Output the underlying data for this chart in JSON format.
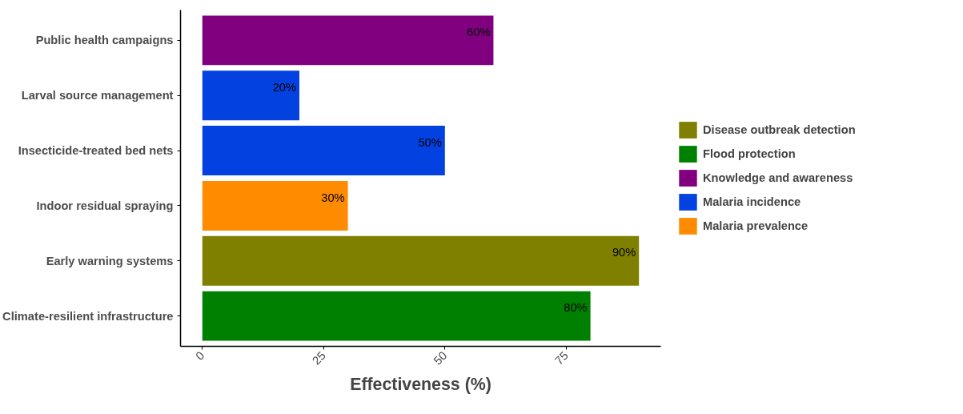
{
  "chart_data": {
    "type": "bar",
    "orientation": "horizontal",
    "xlabel": "Effectiveness (%)",
    "categories": [
      "Public health campaigns",
      "Larval source management",
      "Insecticide-treated bed nets",
      "Indoor residual spraying",
      "Early warning systems",
      "Climate-resilient infrastructure"
    ],
    "series": [
      {
        "name": "Disease outbreak detection",
        "color": "#808000",
        "values": [
          null,
          null,
          null,
          null,
          90,
          null
        ],
        "value_labels": [
          null,
          null,
          null,
          null,
          "90%",
          null
        ]
      },
      {
        "name": "Flood protection",
        "color": "#008000",
        "values": [
          null,
          null,
          null,
          null,
          null,
          80
        ],
        "value_labels": [
          null,
          null,
          null,
          null,
          null,
          "80%"
        ]
      },
      {
        "name": "Knowledge and awareness",
        "color": "#800080",
        "values": [
          60,
          null,
          null,
          null,
          null,
          null
        ],
        "value_labels": [
          "60%",
          null,
          null,
          null,
          null,
          null
        ]
      },
      {
        "name": "Malaria incidence",
        "color": "#0342e0",
        "values": [
          null,
          20,
          50,
          null,
          null,
          null
        ],
        "value_labels": [
          null,
          "20%",
          "50%",
          null,
          null,
          null
        ]
      },
      {
        "name": "Malaria prevalence",
        "color": "#ff8c00",
        "values": [
          null,
          null,
          null,
          30,
          null,
          null
        ],
        "value_labels": [
          null,
          null,
          null,
          "30%",
          null,
          null
        ]
      }
    ],
    "xlim": [
      -4.5,
      94.5
    ],
    "xticks": [
      0,
      25,
      50,
      75
    ],
    "grid": false,
    "legend": "right"
  }
}
